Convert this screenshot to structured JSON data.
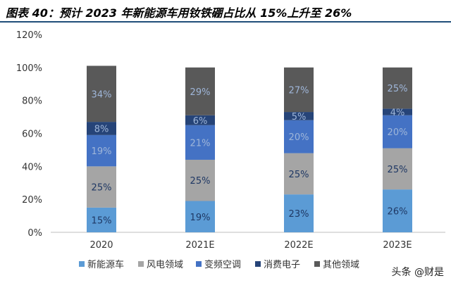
{
  "header": {
    "title": "图表 40：预计 2023 年新能源车用钕铁硼占比从 15%上升至 26%"
  },
  "watermark": "头条 @财是",
  "chart_data": {
    "type": "bar",
    "stacked": true,
    "categories": [
      "2020",
      "2021E",
      "2022E",
      "2023E"
    ],
    "ylim": [
      0,
      120
    ],
    "yticks": [
      "0%",
      "20%",
      "40%",
      "60%",
      "80%",
      "100%",
      "120%"
    ],
    "grid": false,
    "legend_position": "bottom",
    "series": [
      {
        "name": "新能源车",
        "color": "#5b9bd5",
        "values": [
          15,
          19,
          23,
          26
        ],
        "labels": [
          "15%",
          "19%",
          "23%",
          "26%"
        ]
      },
      {
        "name": "风电领域",
        "color": "#a5a5a5",
        "values": [
          25,
          25,
          25,
          25
        ],
        "labels": [
          "25%",
          "25%",
          "25%",
          "25%"
        ]
      },
      {
        "name": "变频空调",
        "color": "#4472c4",
        "values": [
          19,
          21,
          20,
          20
        ],
        "labels": [
          "19%",
          "21%",
          "20%",
          "20%"
        ]
      },
      {
        "name": "消费电子",
        "color": "#264478",
        "values": [
          8,
          6,
          5,
          4
        ],
        "labels": [
          "8%",
          "6%",
          "5%",
          "4%"
        ]
      },
      {
        "name": "其他领域",
        "color": "#595959",
        "values": [
          34,
          29,
          27,
          25
        ],
        "labels": [
          "34%",
          "29%",
          "27%",
          "25%"
        ]
      }
    ]
  }
}
